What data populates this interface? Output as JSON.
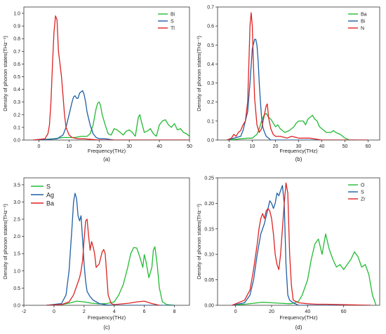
{
  "chart_data": [
    {
      "type": "line",
      "panel": "(a)",
      "caption": "(a)",
      "xlabel": "Frequency(THz)",
      "ylabel": "Density of phonon states(THz⁻¹)",
      "xlim": [
        -5,
        50
      ],
      "ylim": [
        0,
        1.05
      ],
      "xticks": [
        "0",
        "10",
        "20",
        "30",
        "40",
        "50"
      ],
      "yticks": [
        "0.0",
        "0.1",
        "0.2",
        "0.3",
        "0.4",
        "0.5",
        "0.6",
        "0.7",
        "0.8",
        "0.9",
        "1.0"
      ],
      "legend_position": "top-right",
      "series": [
        {
          "name": "Bi",
          "color": "#22bb33",
          "x": [
            -1,
            5,
            8,
            10,
            12,
            14,
            16,
            17,
            18,
            19,
            19.5,
            20,
            20.5,
            21,
            22,
            23,
            24,
            25,
            26,
            27,
            28,
            29,
            30,
            31,
            32,
            33,
            33.5,
            34,
            35,
            36,
            37,
            38,
            39,
            40,
            41,
            42,
            43,
            44,
            45,
            46,
            47,
            48,
            49,
            50
          ],
          "y": [
            0,
            0.01,
            0.02,
            0.02,
            0.02,
            0.03,
            0.03,
            0.05,
            0.12,
            0.25,
            0.29,
            0.3,
            0.27,
            0.2,
            0.12,
            0.05,
            0.04,
            0.09,
            0.08,
            0.06,
            0.04,
            0.07,
            0.08,
            0.06,
            0.03,
            0.18,
            0.2,
            0.15,
            0.06,
            0.07,
            0.09,
            0.05,
            0.03,
            0.12,
            0.15,
            0.16,
            0.12,
            0.1,
            0.13,
            0.08,
            0.09,
            0.06,
            0.05,
            0.03
          ]
        },
        {
          "name": "S",
          "color": "#1f5fa6",
          "x": [
            -1,
            6,
            8,
            9,
            10,
            11,
            11.5,
            12,
            12.5,
            13,
            13.5,
            14,
            14.5,
            15,
            15.5,
            16,
            17,
            18,
            19,
            20,
            22,
            25,
            30,
            50
          ],
          "y": [
            0,
            0.01,
            0.04,
            0.1,
            0.2,
            0.3,
            0.34,
            0.35,
            0.33,
            0.33,
            0.37,
            0.38,
            0.39,
            0.36,
            0.3,
            0.22,
            0.12,
            0.05,
            0.02,
            0.01,
            0.01,
            0,
            0,
            0
          ]
        },
        {
          "name": "Tl",
          "color": "#dd2222",
          "x": [
            -2,
            2,
            3,
            3.5,
            4,
            4.5,
            5,
            5.5,
            6,
            6.5,
            7,
            7.5,
            8,
            8.5,
            9,
            10,
            11,
            13,
            15,
            20,
            50
          ],
          "y": [
            0,
            0.01,
            0.05,
            0.12,
            0.3,
            0.6,
            0.85,
            0.98,
            0.95,
            0.7,
            0.6,
            0.5,
            0.35,
            0.2,
            0.1,
            0.04,
            0.02,
            0.01,
            0.01,
            0,
            0
          ]
        }
      ]
    },
    {
      "type": "line",
      "panel": "(b)",
      "caption": "(b)",
      "xlabel": "Frequency(THz)",
      "ylabel": "Density of phonon states(THz⁻¹)",
      "xlim": [
        -5,
        65
      ],
      "ylim": [
        0,
        0.7
      ],
      "xticks": [
        "0",
        "10",
        "20",
        "30",
        "40",
        "50",
        "60"
      ],
      "yticks": [
        "0.0",
        "0.1",
        "0.2",
        "0.3",
        "0.4",
        "0.5",
        "0.6",
        "0.7"
      ],
      "legend_position": "top-right",
      "series": [
        {
          "name": "Ba",
          "color": "#22bb33",
          "x": [
            -1,
            8,
            10,
            12,
            13,
            14,
            15,
            16,
            17,
            18,
            19,
            20,
            21,
            22,
            24,
            26,
            28,
            29,
            30,
            32,
            33,
            34,
            35,
            36,
            37,
            38,
            39,
            40,
            42,
            44,
            45,
            46,
            48,
            50,
            51,
            52,
            55
          ],
          "y": [
            0,
            0.01,
            0.01,
            0.03,
            0.06,
            0.1,
            0.13,
            0.14,
            0.12,
            0.11,
            0.09,
            0.07,
            0.08,
            0.06,
            0.04,
            0.05,
            0.07,
            0.09,
            0.1,
            0.1,
            0.08,
            0.11,
            0.12,
            0.13,
            0.11,
            0.1,
            0.07,
            0.06,
            0.04,
            0.04,
            0.05,
            0.04,
            0.03,
            0.01,
            0.005,
            0,
            0
          ]
        },
        {
          "name": "Bi",
          "color": "#1f5fa6",
          "x": [
            -1,
            5,
            6,
            7,
            8,
            9,
            10,
            11,
            11.5,
            12,
            12.5,
            13,
            13.5,
            14,
            14.5,
            15,
            16,
            17,
            18,
            20,
            60
          ],
          "y": [
            0,
            0.02,
            0.05,
            0.1,
            0.15,
            0.3,
            0.48,
            0.53,
            0.53,
            0.5,
            0.42,
            0.3,
            0.2,
            0.12,
            0.07,
            0.05,
            0.02,
            0.01,
            0,
            0,
            0
          ]
        },
        {
          "name": "N",
          "color": "#dd2222",
          "x": [
            -1,
            1,
            2,
            3,
            4,
            5,
            6,
            7,
            8,
            8.5,
            9,
            9.5,
            10,
            10.5,
            11,
            12,
            13,
            14,
            15,
            16,
            16.5,
            17,
            18,
            19,
            20,
            22,
            25,
            27,
            30,
            35,
            40,
            60
          ],
          "y": [
            0,
            0.01,
            0.03,
            0.02,
            0.04,
            0.05,
            0.08,
            0.1,
            0.2,
            0.4,
            0.6,
            0.67,
            0.6,
            0.4,
            0.22,
            0.08,
            0.04,
            0.06,
            0.12,
            0.18,
            0.19,
            0.12,
            0.06,
            0.03,
            0.02,
            0.02,
            0.01,
            0.02,
            0.01,
            0.01,
            0,
            0
          ]
        }
      ]
    },
    {
      "type": "line",
      "panel": "(c)",
      "caption": "(c)",
      "xlabel": "Frequency(THz)",
      "ylabel": "Density of phonon states(THz⁻¹)",
      "xlim": [
        -2,
        9
      ],
      "ylim": [
        0,
        3.7
      ],
      "xticks": [
        "-2",
        "0",
        "2",
        "4",
        "6",
        "8"
      ],
      "yticks": [
        "0.0",
        "0.5",
        "1.0",
        "1.5",
        "2.0",
        "2.5",
        "3.0",
        "3.5"
      ],
      "legend_position": "top-left",
      "series": [
        {
          "name": "S",
          "color": "#22bb33",
          "x": [
            -0.5,
            0.5,
            1,
            1.5,
            2,
            2.5,
            3,
            3.5,
            4,
            4.3,
            4.6,
            4.9,
            5.1,
            5.3,
            5.5,
            5.7,
            5.9,
            6.0,
            6.1,
            6.3,
            6.5,
            6.6,
            6.7,
            6.85,
            7,
            7.2,
            7.5,
            8
          ],
          "y": [
            0,
            0.02,
            0.06,
            0.12,
            0.1,
            0.06,
            0.04,
            0.05,
            0.1,
            0.3,
            0.6,
            1.1,
            1.5,
            1.68,
            1.66,
            1.4,
            1.1,
            1.47,
            1.3,
            0.8,
            1.1,
            1.6,
            1.7,
            1.2,
            0.5,
            0.1,
            0.02,
            0
          ]
        },
        {
          "name": "Ag",
          "color": "#1f5fa6",
          "x": [
            -0.5,
            0.5,
            0.8,
            1.0,
            1.2,
            1.3,
            1.4,
            1.5,
            1.6,
            1.7,
            1.8,
            1.9,
            2.0,
            2.1,
            2.2,
            2.4,
            2.6,
            3,
            3.5,
            4,
            8
          ],
          "y": [
            0,
            0.05,
            0.3,
            1.0,
            2.3,
            3.0,
            3.25,
            3.1,
            2.6,
            2.45,
            2.6,
            1.9,
            1.2,
            0.7,
            0.4,
            0.25,
            0.15,
            0.05,
            0.01,
            0,
            0
          ]
        },
        {
          "name": "Ba",
          "color": "#dd2222",
          "x": [
            -0.5,
            0.5,
            1.0,
            1.3,
            1.5,
            1.7,
            1.8,
            1.9,
            2.0,
            2.1,
            2.2,
            2.3,
            2.4,
            2.5,
            2.6,
            2.7,
            2.8,
            3.0,
            3.2,
            3.3,
            3.4,
            3.5,
            3.6,
            3.8,
            4,
            5,
            5.5,
            6,
            6.5,
            7
          ],
          "y": [
            0,
            0.02,
            0.1,
            0.3,
            0.55,
            0.8,
            1.0,
            1.3,
            1.9,
            2.45,
            2.5,
            2.0,
            1.6,
            1.85,
            1.7,
            1.5,
            1.1,
            1.2,
            1.55,
            1.62,
            1.5,
            0.9,
            0.3,
            0.05,
            0.02,
            0.06,
            0.1,
            0.12,
            0.05,
            0
          ]
        }
      ]
    },
    {
      "type": "line",
      "panel": "(d)",
      "caption": "(d)",
      "xlabel": "Frequency(THz)",
      "ylabel": "Density of phonon states(THz⁻¹)",
      "xlim": [
        -10,
        80
      ],
      "ylim": [
        0,
        0.25
      ],
      "xticks": [
        "0",
        "20",
        "40",
        "60"
      ],
      "yticks": [
        "0.00",
        "0.05",
        "0.10",
        "0.15",
        "0.20",
        "0.25"
      ],
      "legend_position": "top-right",
      "series": [
        {
          "name": "O",
          "color": "#22bb33",
          "x": [
            -2,
            5,
            10,
            15,
            20,
            25,
            30,
            32,
            35,
            37,
            40,
            42,
            44,
            46,
            48,
            50,
            52,
            54,
            56,
            58,
            60,
            62,
            64,
            66,
            68,
            70,
            72,
            74,
            76,
            78
          ],
          "y": [
            0,
            0.002,
            0.004,
            0.006,
            0.005,
            0.004,
            0.003,
            0.004,
            0.008,
            0.02,
            0.05,
            0.09,
            0.12,
            0.13,
            0.1,
            0.14,
            0.11,
            0.09,
            0.075,
            0.08,
            0.07,
            0.08,
            0.09,
            0.105,
            0.095,
            0.075,
            0.08,
            0.06,
            0.02,
            0
          ]
        },
        {
          "name": "S",
          "color": "#1f5fa6",
          "x": [
            -2,
            5,
            8,
            10,
            12,
            14,
            16,
            18,
            19,
            20,
            21,
            22,
            23,
            24,
            25,
            26,
            27,
            28,
            29,
            30,
            32,
            35,
            40,
            75
          ],
          "y": [
            0,
            0.005,
            0.02,
            0.05,
            0.1,
            0.14,
            0.16,
            0.19,
            0.205,
            0.2,
            0.19,
            0.2,
            0.22,
            0.215,
            0.225,
            0.235,
            0.2,
            0.08,
            0.02,
            0.01,
            0.005,
            0,
            0,
            0
          ]
        },
        {
          "name": "Zr",
          "color": "#dd2222",
          "x": [
            -2,
            5,
            8,
            10,
            12,
            13,
            14,
            15,
            16,
            17,
            18,
            19,
            20,
            21,
            22,
            23,
            24,
            25,
            26,
            27,
            28,
            29,
            30,
            31,
            32,
            35,
            40,
            45,
            50,
            75
          ],
          "y": [
            0,
            0.01,
            0.03,
            0.07,
            0.12,
            0.15,
            0.17,
            0.18,
            0.17,
            0.185,
            0.19,
            0.185,
            0.17,
            0.14,
            0.1,
            0.08,
            0.07,
            0.1,
            0.15,
            0.2,
            0.24,
            0.22,
            0.1,
            0.04,
            0.01,
            0.005,
            0.003,
            0.002,
            0.002,
            0
          ]
        }
      ]
    }
  ]
}
